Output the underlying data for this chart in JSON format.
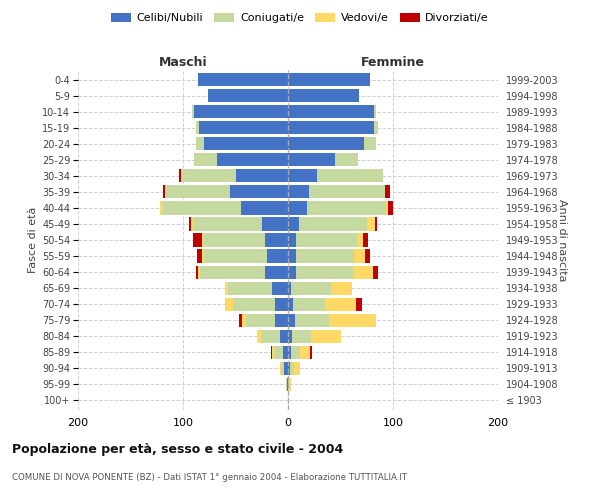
{
  "age_groups": [
    "100+",
    "95-99",
    "90-94",
    "85-89",
    "80-84",
    "75-79",
    "70-74",
    "65-69",
    "60-64",
    "55-59",
    "50-54",
    "45-49",
    "40-44",
    "35-39",
    "30-34",
    "25-29",
    "20-24",
    "15-19",
    "10-14",
    "5-9",
    "0-4"
  ],
  "birth_years": [
    "≤ 1903",
    "1904-1908",
    "1909-1913",
    "1914-1918",
    "1919-1923",
    "1924-1928",
    "1929-1933",
    "1934-1938",
    "1939-1943",
    "1944-1948",
    "1949-1953",
    "1954-1958",
    "1959-1963",
    "1964-1968",
    "1969-1973",
    "1974-1978",
    "1979-1983",
    "1984-1988",
    "1989-1993",
    "1994-1998",
    "1999-2003"
  ],
  "maschi": {
    "celibi": [
      0,
      1,
      4,
      5,
      8,
      12,
      12,
      15,
      22,
      20,
      22,
      25,
      45,
      55,
      50,
      68,
      80,
      85,
      90,
      76,
      86
    ],
    "coniugati": [
      0,
      1,
      3,
      8,
      18,
      28,
      40,
      42,
      62,
      60,
      58,
      65,
      75,
      62,
      52,
      22,
      8,
      3,
      1,
      0,
      0
    ],
    "vedovi": [
      0,
      0,
      1,
      2,
      4,
      4,
      8,
      3,
      2,
      2,
      2,
      2,
      2,
      0,
      0,
      0,
      0,
      0,
      0,
      0,
      0
    ],
    "divorziati": [
      0,
      0,
      0,
      1,
      0,
      3,
      0,
      0,
      2,
      5,
      8,
      2,
      0,
      2,
      2,
      0,
      0,
      0,
      0,
      0,
      0
    ]
  },
  "femmine": {
    "nubili": [
      0,
      0,
      2,
      3,
      4,
      7,
      5,
      3,
      8,
      8,
      8,
      10,
      18,
      20,
      28,
      45,
      72,
      82,
      82,
      68,
      78
    ],
    "coniugate": [
      0,
      1,
      4,
      8,
      18,
      32,
      30,
      38,
      55,
      55,
      58,
      65,
      75,
      72,
      62,
      22,
      12,
      4,
      2,
      0,
      0
    ],
    "vedove": [
      0,
      2,
      5,
      10,
      28,
      45,
      30,
      20,
      18,
      10,
      5,
      8,
      2,
      0,
      0,
      0,
      0,
      0,
      0,
      0,
      0
    ],
    "divorziate": [
      0,
      0,
      0,
      2,
      0,
      0,
      5,
      0,
      5,
      5,
      5,
      2,
      5,
      5,
      0,
      0,
      0,
      0,
      0,
      0,
      0
    ]
  },
  "colors": {
    "celibi": "#4472C4",
    "coniugati": "#c5d9a0",
    "vedovi": "#FFD966",
    "divorziati": "#C00000"
  },
  "xlim": 200,
  "title": "Popolazione per età, sesso e stato civile - 2004",
  "subtitle": "COMUNE DI NOVA PONENTE (BZ) - Dati ISTAT 1° gennaio 2004 - Elaborazione TUTTITALIA.IT",
  "ylabel_left": "Fasce di età",
  "ylabel_right": "Anni di nascita",
  "legend_labels": [
    "Celibi/Nubili",
    "Coniugati/e",
    "Vedovi/e",
    "Divorziati/e"
  ],
  "maschi_label": "Maschi",
  "femmine_label": "Femmine",
  "background_color": "#ffffff",
  "grid_color": "#cccccc"
}
